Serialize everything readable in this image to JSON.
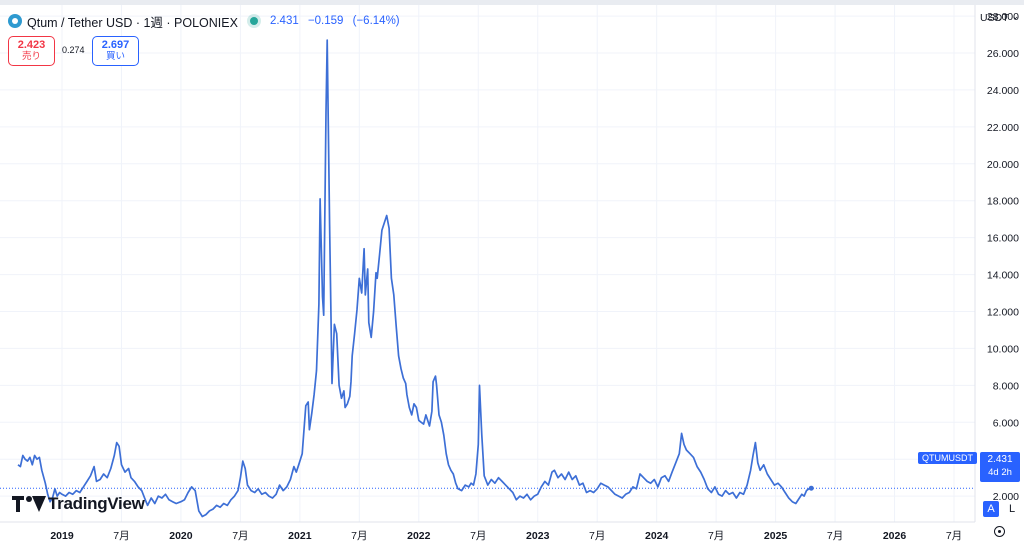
{
  "header": {
    "title": "Qtum / Tether USD · 1週 · POLONIEX",
    "last": "2.431",
    "change": "−0.159",
    "change_pct": "(−6.14%)"
  },
  "trade": {
    "sell_price": "2.423",
    "sell_label": "売り",
    "spread": "0.274",
    "buy_price": "2.697",
    "buy_label": "買い"
  },
  "axis": {
    "currency": "USDT",
    "symbol_label": "QTUMUSDT",
    "last_price": "2.431",
    "countdown": "4d 2h",
    "mode_auto": "A",
    "mode_log": "L"
  },
  "brand": {
    "name": "TradingView"
  },
  "colors": {
    "line": "#3d6fd6",
    "accent": "#2962ff",
    "sell": "#f23645",
    "live": "#26a69a"
  },
  "chart_data": {
    "type": "line",
    "title": "Qtum / Tether USD · 1週 · POLONIEX",
    "xlabel": "",
    "ylabel": "",
    "ylim": [
      0.6,
      28.6
    ],
    "y_ticks": [
      "28.000",
      "26.000",
      "24.000",
      "22.000",
      "20.000",
      "18.000",
      "16.000",
      "14.000",
      "12.000",
      "10.000",
      "8.000",
      "6.000",
      "4.000",
      "2.000"
    ],
    "y_tick_values": [
      28,
      26,
      24,
      22,
      20,
      18,
      16,
      14,
      12,
      10,
      8,
      6,
      4,
      2
    ],
    "x_ticks": [
      {
        "label": "2019",
        "t": 2019.0
      },
      {
        "label": "7月",
        "t": 2019.5
      },
      {
        "label": "2020",
        "t": 2020.0
      },
      {
        "label": "7月",
        "t": 2020.5
      },
      {
        "label": "2021",
        "t": 2021.0
      },
      {
        "label": "7月",
        "t": 2021.5
      },
      {
        "label": "2022",
        "t": 2022.0
      },
      {
        "label": "7月",
        "t": 2022.5
      },
      {
        "label": "2023",
        "t": 2023.0
      },
      {
        "label": "7月",
        "t": 2023.5
      },
      {
        "label": "2024",
        "t": 2024.0
      },
      {
        "label": "7月",
        "t": 2024.5
      },
      {
        "label": "2025",
        "t": 2025.0
      },
      {
        "label": "7月",
        "t": 2025.5
      },
      {
        "label": "2026",
        "t": 2026.0
      },
      {
        "label": "7月",
        "t": 2026.5
      }
    ],
    "grid": true,
    "last_value": 2.431,
    "series": [
      {
        "points": [
          [
            2018.63,
            3.7
          ],
          [
            2018.65,
            3.6
          ],
          [
            2018.67,
            4.2
          ],
          [
            2018.69,
            4.0
          ],
          [
            2018.71,
            3.9
          ],
          [
            2018.73,
            4.1
          ],
          [
            2018.75,
            3.7
          ],
          [
            2018.77,
            4.2
          ],
          [
            2018.79,
            4.0
          ],
          [
            2018.81,
            4.1
          ],
          [
            2018.83,
            3.4
          ],
          [
            2018.86,
            2.7
          ],
          [
            2018.88,
            2.1
          ],
          [
            2018.9,
            1.7
          ],
          [
            2018.92,
            1.9
          ],
          [
            2018.94,
            2.4
          ],
          [
            2018.96,
            2.0
          ],
          [
            2018.98,
            2.2
          ],
          [
            2019.0,
            2.1
          ],
          [
            2019.03,
            2.0
          ],
          [
            2019.06,
            2.2
          ],
          [
            2019.09,
            2.1
          ],
          [
            2019.12,
            2.3
          ],
          [
            2019.15,
            2.2
          ],
          [
            2019.18,
            2.5
          ],
          [
            2019.21,
            2.8
          ],
          [
            2019.24,
            3.1
          ],
          [
            2019.27,
            3.6
          ],
          [
            2019.29,
            2.8
          ],
          [
            2019.32,
            2.9
          ],
          [
            2019.35,
            3.2
          ],
          [
            2019.38,
            3.0
          ],
          [
            2019.41,
            3.5
          ],
          [
            2019.44,
            4.2
          ],
          [
            2019.46,
            4.9
          ],
          [
            2019.48,
            4.7
          ],
          [
            2019.5,
            3.7
          ],
          [
            2019.53,
            3.3
          ],
          [
            2019.56,
            3.5
          ],
          [
            2019.58,
            3.0
          ],
          [
            2019.61,
            2.8
          ],
          [
            2019.64,
            2.5
          ],
          [
            2019.67,
            2.3
          ],
          [
            2019.7,
            1.8
          ],
          [
            2019.72,
            1.5
          ],
          [
            2019.75,
            1.9
          ],
          [
            2019.78,
            1.6
          ],
          [
            2019.81,
            2.0
          ],
          [
            2019.84,
            1.9
          ],
          [
            2019.87,
            2.1
          ],
          [
            2019.9,
            1.8
          ],
          [
            2019.93,
            1.7
          ],
          [
            2019.96,
            1.6
          ],
          [
            2020.0,
            1.7
          ],
          [
            2020.03,
            1.8
          ],
          [
            2020.06,
            2.2
          ],
          [
            2020.09,
            2.5
          ],
          [
            2020.12,
            2.3
          ],
          [
            2020.15,
            1.2
          ],
          [
            2020.18,
            0.9
          ],
          [
            2020.21,
            1.0
          ],
          [
            2020.24,
            1.2
          ],
          [
            2020.27,
            1.3
          ],
          [
            2020.3,
            1.5
          ],
          [
            2020.33,
            1.4
          ],
          [
            2020.36,
            1.6
          ],
          [
            2020.39,
            1.5
          ],
          [
            2020.42,
            1.8
          ],
          [
            2020.45,
            2.0
          ],
          [
            2020.48,
            2.3
          ],
          [
            2020.5,
            3.0
          ],
          [
            2020.52,
            3.9
          ],
          [
            2020.54,
            3.5
          ],
          [
            2020.56,
            2.6
          ],
          [
            2020.59,
            2.3
          ],
          [
            2020.62,
            2.2
          ],
          [
            2020.65,
            2.4
          ],
          [
            2020.68,
            2.1
          ],
          [
            2020.71,
            2.2
          ],
          [
            2020.74,
            2.0
          ],
          [
            2020.77,
            1.9
          ],
          [
            2020.8,
            2.1
          ],
          [
            2020.83,
            2.6
          ],
          [
            2020.86,
            2.3
          ],
          [
            2020.89,
            2.5
          ],
          [
            2020.92,
            2.9
          ],
          [
            2020.95,
            3.6
          ],
          [
            2020.97,
            3.3
          ],
          [
            2020.99,
            3.7
          ],
          [
            2021.02,
            4.3
          ],
          [
            2021.05,
            6.9
          ],
          [
            2021.07,
            7.1
          ],
          [
            2021.08,
            5.6
          ],
          [
            2021.1,
            6.5
          ],
          [
            2021.12,
            7.5
          ],
          [
            2021.14,
            8.8
          ],
          [
            2021.16,
            12.4
          ],
          [
            2021.17,
            18.1
          ],
          [
            2021.19,
            12.8
          ],
          [
            2021.2,
            11.8
          ],
          [
            2021.22,
            22.8
          ],
          [
            2021.23,
            26.7
          ],
          [
            2021.25,
            16.7
          ],
          [
            2021.27,
            8.1
          ],
          [
            2021.29,
            11.3
          ],
          [
            2021.31,
            10.8
          ],
          [
            2021.33,
            8.0
          ],
          [
            2021.35,
            7.3
          ],
          [
            2021.37,
            7.7
          ],
          [
            2021.38,
            6.8
          ],
          [
            2021.4,
            7.0
          ],
          [
            2021.42,
            7.4
          ],
          [
            2021.43,
            8.2
          ],
          [
            2021.44,
            9.6
          ],
          [
            2021.46,
            10.8
          ],
          [
            2021.48,
            12.1
          ],
          [
            2021.5,
            13.8
          ],
          [
            2021.52,
            13.0
          ],
          [
            2021.54,
            15.4
          ],
          [
            2021.55,
            12.9
          ],
          [
            2021.57,
            14.3
          ],
          [
            2021.58,
            11.4
          ],
          [
            2021.6,
            10.6
          ],
          [
            2021.62,
            12.0
          ],
          [
            2021.64,
            14.1
          ],
          [
            2021.65,
            13.8
          ],
          [
            2021.67,
            15.1
          ],
          [
            2021.69,
            16.4
          ],
          [
            2021.71,
            16.8
          ],
          [
            2021.73,
            17.2
          ],
          [
            2021.75,
            16.5
          ],
          [
            2021.77,
            13.8
          ],
          [
            2021.79,
            12.9
          ],
          [
            2021.81,
            11.2
          ],
          [
            2021.83,
            9.6
          ],
          [
            2021.85,
            8.9
          ],
          [
            2021.87,
            8.4
          ],
          [
            2021.89,
            8.1
          ],
          [
            2021.9,
            7.5
          ],
          [
            2021.92,
            6.8
          ],
          [
            2021.94,
            6.4
          ],
          [
            2021.96,
            7.0
          ],
          [
            2021.98,
            6.8
          ],
          [
            2022.0,
            6.1
          ],
          [
            2022.02,
            6.0
          ],
          [
            2022.04,
            5.9
          ],
          [
            2022.06,
            6.4
          ],
          [
            2022.07,
            6.2
          ],
          [
            2022.09,
            5.8
          ],
          [
            2022.11,
            6.6
          ],
          [
            2022.12,
            8.2
          ],
          [
            2022.14,
            8.5
          ],
          [
            2022.15,
            8.0
          ],
          [
            2022.17,
            6.4
          ],
          [
            2022.19,
            6.0
          ],
          [
            2022.21,
            5.3
          ],
          [
            2022.23,
            4.3
          ],
          [
            2022.25,
            3.7
          ],
          [
            2022.27,
            3.4
          ],
          [
            2022.29,
            3.2
          ],
          [
            2022.31,
            2.7
          ],
          [
            2022.33,
            2.4
          ],
          [
            2022.36,
            2.3
          ],
          [
            2022.39,
            2.6
          ],
          [
            2022.42,
            2.5
          ],
          [
            2022.44,
            2.7
          ],
          [
            2022.46,
            2.6
          ],
          [
            2022.48,
            3.2
          ],
          [
            2022.5,
            4.8
          ],
          [
            2022.51,
            8.0
          ],
          [
            2022.53,
            5.3
          ],
          [
            2022.55,
            3.1
          ],
          [
            2022.58,
            2.6
          ],
          [
            2022.61,
            2.9
          ],
          [
            2022.64,
            2.7
          ],
          [
            2022.67,
            3.0
          ],
          [
            2022.7,
            2.8
          ],
          [
            2022.73,
            2.6
          ],
          [
            2022.76,
            2.4
          ],
          [
            2022.79,
            2.2
          ],
          [
            2022.82,
            1.8
          ],
          [
            2022.85,
            2.0
          ],
          [
            2022.88,
            1.9
          ],
          [
            2022.91,
            2.1
          ],
          [
            2022.94,
            1.8
          ],
          [
            2022.97,
            2.0
          ],
          [
            2023.0,
            2.1
          ],
          [
            2023.03,
            2.5
          ],
          [
            2023.06,
            2.8
          ],
          [
            2023.09,
            2.6
          ],
          [
            2023.12,
            3.3
          ],
          [
            2023.14,
            3.4
          ],
          [
            2023.17,
            3.0
          ],
          [
            2023.2,
            3.2
          ],
          [
            2023.23,
            2.9
          ],
          [
            2023.26,
            3.3
          ],
          [
            2023.29,
            2.9
          ],
          [
            2023.32,
            3.1
          ],
          [
            2023.35,
            2.6
          ],
          [
            2023.38,
            2.7
          ],
          [
            2023.41,
            2.2
          ],
          [
            2023.44,
            2.3
          ],
          [
            2023.47,
            2.2
          ],
          [
            2023.5,
            2.4
          ],
          [
            2023.53,
            2.7
          ],
          [
            2023.56,
            2.6
          ],
          [
            2023.59,
            2.5
          ],
          [
            2023.62,
            2.3
          ],
          [
            2023.65,
            2.1
          ],
          [
            2023.68,
            2.0
          ],
          [
            2023.71,
            1.9
          ],
          [
            2023.74,
            2.1
          ],
          [
            2023.77,
            2.2
          ],
          [
            2023.8,
            2.5
          ],
          [
            2023.83,
            2.4
          ],
          [
            2023.86,
            3.2
          ],
          [
            2023.89,
            3.0
          ],
          [
            2023.92,
            2.8
          ],
          [
            2023.95,
            2.7
          ],
          [
            2023.98,
            2.9
          ],
          [
            2024.01,
            2.5
          ],
          [
            2024.04,
            3.0
          ],
          [
            2024.07,
            3.1
          ],
          [
            2024.1,
            2.8
          ],
          [
            2024.13,
            3.3
          ],
          [
            2024.16,
            3.8
          ],
          [
            2024.19,
            4.3
          ],
          [
            2024.21,
            5.4
          ],
          [
            2024.23,
            4.8
          ],
          [
            2024.25,
            4.5
          ],
          [
            2024.28,
            4.3
          ],
          [
            2024.31,
            4.1
          ],
          [
            2024.34,
            3.6
          ],
          [
            2024.37,
            3.3
          ],
          [
            2024.4,
            2.9
          ],
          [
            2024.43,
            2.4
          ],
          [
            2024.46,
            2.2
          ],
          [
            2024.49,
            2.5
          ],
          [
            2024.52,
            2.1
          ],
          [
            2024.55,
            2.0
          ],
          [
            2024.58,
            2.3
          ],
          [
            2024.61,
            2.1
          ],
          [
            2024.64,
            2.2
          ],
          [
            2024.67,
            1.9
          ],
          [
            2024.7,
            2.2
          ],
          [
            2024.73,
            2.1
          ],
          [
            2024.76,
            2.6
          ],
          [
            2024.79,
            3.4
          ],
          [
            2024.81,
            4.2
          ],
          [
            2024.83,
            4.9
          ],
          [
            2024.85,
            3.8
          ],
          [
            2024.87,
            3.4
          ],
          [
            2024.9,
            3.7
          ],
          [
            2024.93,
            3.2
          ],
          [
            2024.96,
            2.9
          ],
          [
            2024.99,
            2.6
          ],
          [
            2025.02,
            2.7
          ],
          [
            2025.05,
            2.5
          ],
          [
            2025.08,
            2.2
          ],
          [
            2025.11,
            1.9
          ],
          [
            2025.14,
            1.7
          ],
          [
            2025.17,
            1.6
          ],
          [
            2025.2,
            1.9
          ],
          [
            2025.22,
            2.1
          ],
          [
            2025.24,
            2.0
          ],
          [
            2025.26,
            2.3
          ],
          [
            2025.28,
            2.4
          ],
          [
            2025.3,
            2.431
          ]
        ]
      }
    ]
  }
}
